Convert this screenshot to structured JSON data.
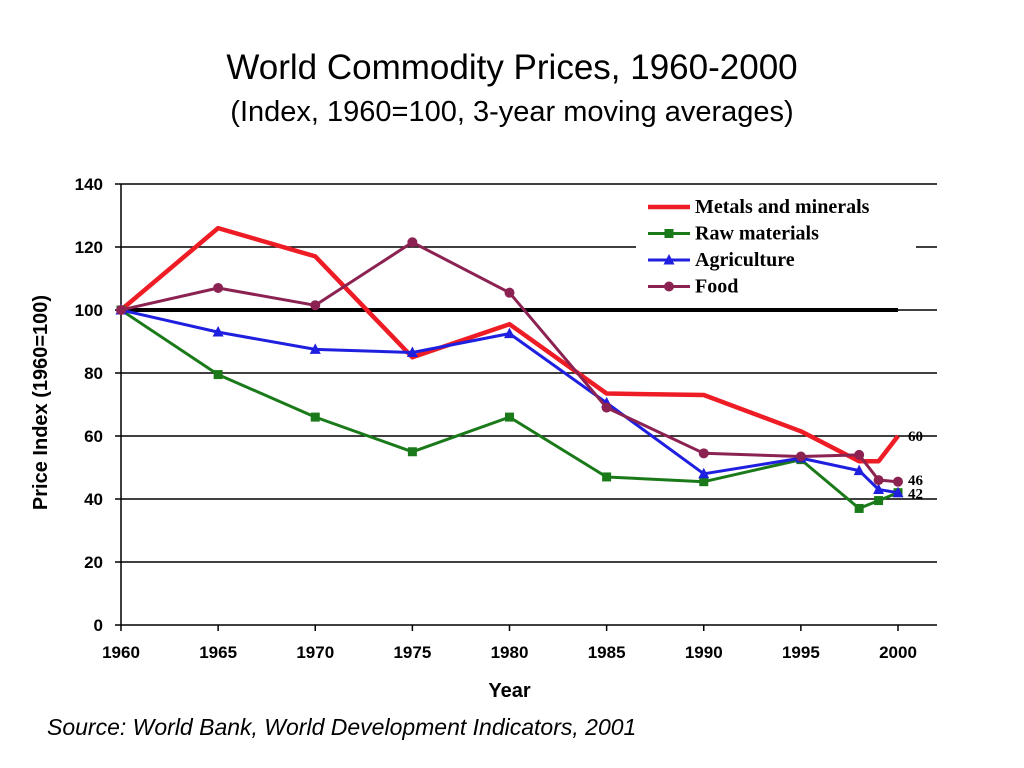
{
  "page": {
    "title": "World Commodity Prices, 1960-2000",
    "subtitle": "(Index, 1960=100, 3-year moving averages)",
    "source": "Source: World Bank, World Development Indicators, 2001"
  },
  "chart_data": {
    "type": "line",
    "title": "World Commodity Prices, 1960-2000",
    "subtitle": "(Index, 1960=100, 3-year moving averages)",
    "xlabel": "Year",
    "ylabel": "Price Index (1960=100)",
    "xlim": [
      1960,
      2000
    ],
    "ylim": [
      0,
      140
    ],
    "x_ticks": [
      1960,
      1965,
      1970,
      1975,
      1980,
      1985,
      1990,
      1995,
      2000
    ],
    "y_ticks": [
      0,
      20,
      40,
      60,
      80,
      100,
      120,
      140
    ],
    "grid": "horizontal",
    "legend_position": "top-right",
    "reference_line": {
      "y": 100,
      "x_range": [
        1960,
        2000
      ]
    },
    "series": [
      {
        "name": "Metals and minerals",
        "color": "#ee1c25",
        "marker": "none",
        "x": [
          1960,
          1965,
          1970,
          1975,
          1980,
          1985,
          1990,
          1995,
          1998,
          1999,
          2000
        ],
        "y": [
          100,
          126,
          117,
          85,
          95.5,
          73.5,
          73,
          61.5,
          52,
          52,
          60
        ]
      },
      {
        "name": "Raw materials",
        "color": "#1a7a1a",
        "marker": "square",
        "x": [
          1960,
          1965,
          1970,
          1975,
          1980,
          1985,
          1990,
          1995,
          1998,
          1999,
          2000
        ],
        "y": [
          100,
          79.5,
          66,
          55,
          66,
          47,
          45.5,
          52.5,
          37,
          39.5,
          42
        ]
      },
      {
        "name": "Agriculture",
        "color": "#1f1fe0",
        "marker": "triangle",
        "x": [
          1960,
          1965,
          1970,
          1975,
          1980,
          1985,
          1990,
          1995,
          1998,
          1999,
          2000
        ],
        "y": [
          100,
          93,
          87.5,
          86.5,
          92.5,
          70.5,
          48,
          53,
          49,
          43,
          42
        ]
      },
      {
        "name": "Food",
        "color": "#8b2252",
        "marker": "circle",
        "x": [
          1960,
          1965,
          1970,
          1975,
          1980,
          1985,
          1990,
          1995,
          1998,
          1999,
          2000
        ],
        "y": [
          100,
          107,
          101.5,
          121.5,
          105.5,
          69,
          54.5,
          53.5,
          54,
          46,
          45.5
        ]
      }
    ],
    "end_labels": [
      {
        "text": "60",
        "value": 60
      },
      {
        "text": "46",
        "value": 46
      },
      {
        "text": "42",
        "value": 42
      }
    ]
  }
}
